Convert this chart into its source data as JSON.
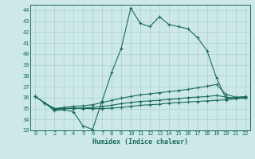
{
  "xlabel": "Humidex (Indice chaleur)",
  "background_color": "#cce8e8",
  "line_color": "#1a6b5a",
  "grid_color": "#aad0d0",
  "xlim": [
    -0.5,
    22.5
  ],
  "ylim": [
    33,
    44.5
  ],
  "yticks": [
    33,
    34,
    35,
    36,
    37,
    38,
    39,
    40,
    41,
    42,
    43,
    44
  ],
  "xticks": [
    0,
    1,
    2,
    3,
    4,
    5,
    6,
    7,
    8,
    9,
    10,
    11,
    12,
    13,
    14,
    15,
    16,
    17,
    18,
    19,
    20,
    21,
    22
  ],
  "series": [
    {
      "x": [
        0,
        1,
        2,
        3,
        4,
        5,
        6,
        7,
        8,
        9,
        10,
        11,
        12,
        13,
        14,
        15,
        16,
        17,
        18,
        19,
        20,
        21,
        22
      ],
      "y": [
        36.1,
        35.5,
        34.8,
        34.9,
        34.7,
        33.4,
        33.1,
        35.7,
        38.3,
        40.5,
        44.2,
        42.8,
        42.5,
        43.4,
        42.7,
        42.5,
        42.3,
        41.5,
        40.3,
        37.8,
        35.9,
        36.0,
        36.1
      ]
    },
    {
      "x": [
        0,
        1,
        2,
        3,
        4,
        5,
        6,
        7,
        8,
        9,
        10,
        11,
        12,
        13,
        14,
        15,
        16,
        17,
        18,
        19,
        20,
        21,
        22
      ],
      "y": [
        36.1,
        35.5,
        35.0,
        35.1,
        35.2,
        35.25,
        35.35,
        35.55,
        35.75,
        35.95,
        36.1,
        36.25,
        36.35,
        36.45,
        36.55,
        36.65,
        36.75,
        36.9,
        37.05,
        37.2,
        36.3,
        36.05,
        36.05
      ]
    },
    {
      "x": [
        0,
        1,
        2,
        3,
        4,
        5,
        6,
        7,
        8,
        9,
        10,
        11,
        12,
        13,
        14,
        15,
        16,
        17,
        18,
        19,
        20,
        21,
        22
      ],
      "y": [
        36.1,
        35.5,
        34.9,
        35.0,
        35.0,
        35.05,
        35.1,
        35.2,
        35.3,
        35.45,
        35.55,
        35.65,
        35.7,
        35.75,
        35.85,
        35.9,
        36.0,
        36.05,
        36.1,
        36.2,
        36.05,
        35.95,
        36.0
      ]
    },
    {
      "x": [
        0,
        1,
        2,
        3,
        4,
        5,
        6,
        7,
        8,
        9,
        10,
        11,
        12,
        13,
        14,
        15,
        16,
        17,
        18,
        19,
        20,
        21,
        22
      ],
      "y": [
        36.1,
        35.5,
        35.0,
        35.0,
        35.05,
        35.0,
        35.0,
        35.0,
        35.05,
        35.1,
        35.2,
        35.3,
        35.35,
        35.4,
        35.5,
        35.55,
        35.6,
        35.65,
        35.7,
        35.75,
        35.8,
        35.9,
        35.95
      ]
    }
  ]
}
